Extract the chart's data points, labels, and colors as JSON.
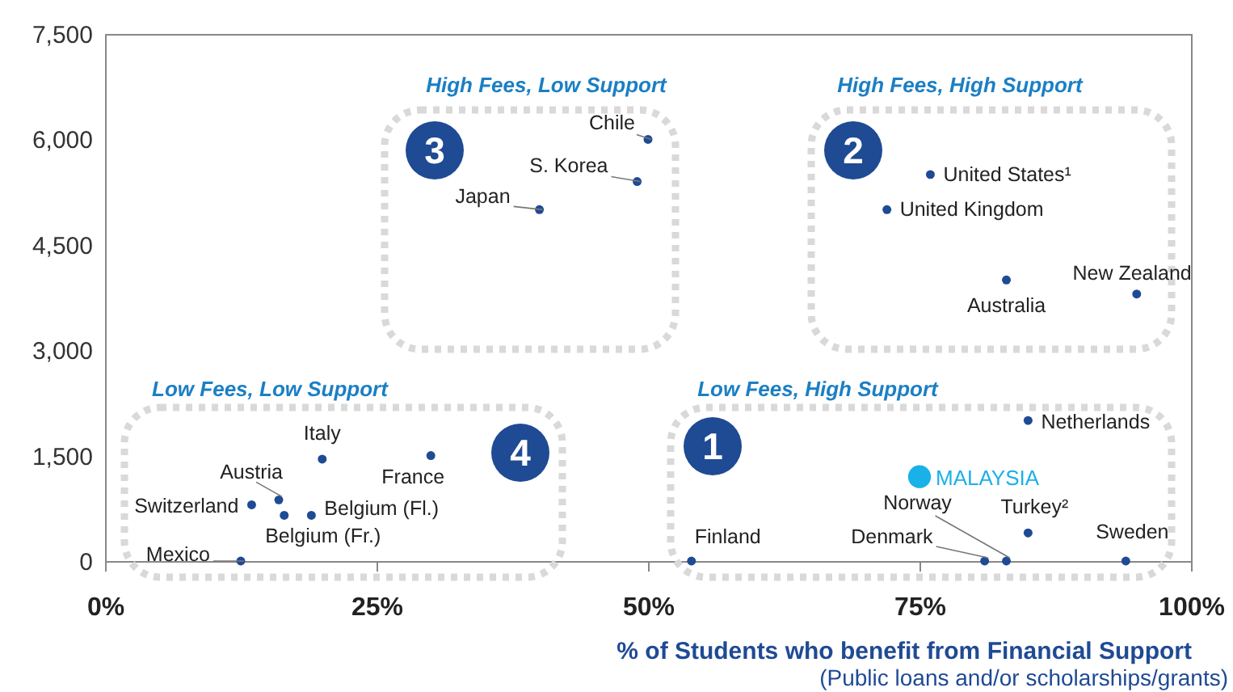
{
  "chart_data": {
    "type": "scatter",
    "xlabel": "% of Students who benefit from Financial Support",
    "marker": "circle",
    "xlim": [
      0,
      100
    ],
    "xticks": [
      {
        "value": 0,
        "label": "0%"
      },
      {
        "value": 25,
        "label": "25%"
      },
      {
        "value": 50,
        "label": "50%"
      },
      {
        "value": 75,
        "label": "75%"
      },
      {
        "value": 100,
        "label": "100%"
      }
    ],
    "ylim": [
      0,
      7500
    ],
    "yticks": [
      0,
      {
        "value": 1500,
        "label": "1,500"
      },
      {
        "value": 3000,
        "label": "3,000"
      },
      {
        "value": 4500,
        "label": "4,500"
      },
      {
        "value": 6000,
        "label": "6,000"
      },
      {
        "value": 7500,
        "label": "7,500"
      }
    ],
    "series": [
      {
        "color": "#1f4a94",
        "x": [
          50,
          49,
          40,
          76,
          72,
          83,
          95,
          85,
          85,
          94,
          83,
          81,
          54,
          20,
          30,
          16,
          13.5,
          19,
          16.5,
          12.5
        ],
        "values": [
          6000,
          5400,
          5000,
          5500,
          5000,
          4000,
          3800,
          2000,
          400,
          0,
          0,
          0,
          0,
          1450,
          1500,
          870,
          800,
          650,
          650,
          0
        ]
      },
      {
        "name": "MALAYSIA",
        "color": "#1ab0e8",
        "x": [
          75
        ],
        "values": [
          1200
        ]
      }
    ],
    "annotations": [
      {
        "text": "Chile",
        "x": 50,
        "y": 6000
      },
      {
        "text": "S. Korea",
        "x": 49,
        "y": 5400
      },
      {
        "text": "Japan",
        "x": 40,
        "y": 5000
      },
      {
        "text": "United States¹",
        "x": 76,
        "y": 5500
      },
      {
        "text": "United Kingdom",
        "x": 72,
        "y": 5000
      },
      {
        "text": "Australia",
        "x": 83,
        "y": 4000
      },
      {
        "text": "New Zealand",
        "x": 95,
        "y": 3800
      },
      {
        "text": "Netherlands",
        "x": 85,
        "y": 2000
      },
      {
        "text": "Turkey²",
        "x": 85,
        "y": 400
      },
      {
        "text": "Sweden",
        "x": 94,
        "y": 0
      },
      {
        "text": "Norway",
        "x": 83,
        "y": 0
      },
      {
        "text": "Denmark",
        "x": 81,
        "y": 0
      },
      {
        "text": "Finland",
        "x": 54,
        "y": 0
      },
      {
        "text": "Italy",
        "x": 20,
        "y": 1450
      },
      {
        "text": "France",
        "x": 30,
        "y": 1500
      },
      {
        "text": "Austria",
        "x": 16,
        "y": 870
      },
      {
        "text": "Switzerland",
        "x": 13.5,
        "y": 800
      },
      {
        "text": "Belgium (Fl.)",
        "x": 19,
        "y": 650
      },
      {
        "text": "Belgium (Fr.)",
        "x": 16.5,
        "y": 650
      },
      {
        "text": "Mexico",
        "x": 12.5,
        "y": 0
      },
      "High Fees, Low Support",
      "High Fees, High Support",
      "Low Fees, Low Support",
      "Low Fees, High Support",
      "3",
      "2",
      "4",
      "1",
      "(Public loans and/or scholarships/grants)"
    ]
  }
}
